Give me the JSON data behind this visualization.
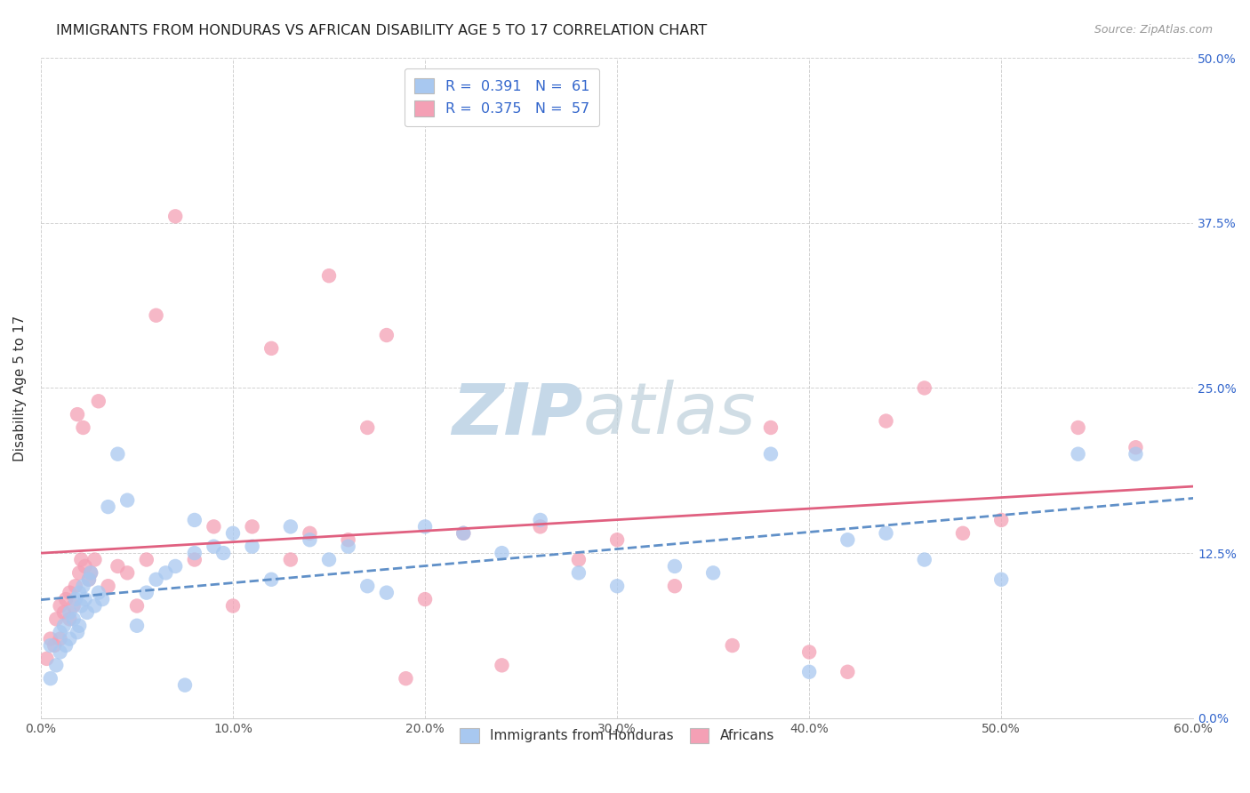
{
  "title": "IMMIGRANTS FROM HONDURAS VS AFRICAN DISABILITY AGE 5 TO 17 CORRELATION CHART",
  "source": "Source: ZipAtlas.com",
  "ylabel": "Disability Age 5 to 17",
  "ylabel_ticks": [
    "0.0%",
    "12.5%",
    "25.0%",
    "37.5%",
    "50.0%"
  ],
  "ylabel_vals": [
    0,
    12.5,
    25,
    37.5,
    50
  ],
  "xlabel_ticks": [
    "0.0%",
    "10.0%",
    "20.0%",
    "30.0%",
    "40.0%",
    "50.0%",
    "60.0%"
  ],
  "xlabel_vals": [
    0,
    10,
    20,
    30,
    40,
    50,
    60
  ],
  "xlim": [
    0,
    60
  ],
  "ylim": [
    0,
    50
  ],
  "r_honduras": 0.391,
  "n_honduras": 61,
  "r_africans": 0.375,
  "n_africans": 57,
  "color_honduras": "#a8c8f0",
  "color_africans": "#f4a0b5",
  "color_text_blue": "#3366cc",
  "watermark_color": "#c8d8e8",
  "honduras_x": [
    0.5,
    0.5,
    0.8,
    1.0,
    1.0,
    1.2,
    1.3,
    1.5,
    1.5,
    1.7,
    1.8,
    1.9,
    2.0,
    2.0,
    2.1,
    2.2,
    2.3,
    2.4,
    2.5,
    2.6,
    2.8,
    3.0,
    3.2,
    3.5,
    4.0,
    4.5,
    5.0,
    5.5,
    6.0,
    6.5,
    7.0,
    7.5,
    8.0,
    8.0,
    9.0,
    9.5,
    10.0,
    11.0,
    12.0,
    13.0,
    14.0,
    15.0,
    16.0,
    17.0,
    18.0,
    20.0,
    22.0,
    24.0,
    26.0,
    28.0,
    30.0,
    33.0,
    35.0,
    38.0,
    40.0,
    42.0,
    44.0,
    46.0,
    50.0,
    54.0,
    57.0
  ],
  "honduras_y": [
    3.0,
    5.5,
    4.0,
    5.0,
    6.5,
    7.0,
    5.5,
    6.0,
    8.0,
    7.5,
    9.0,
    6.5,
    7.0,
    9.5,
    8.5,
    10.0,
    9.0,
    8.0,
    10.5,
    11.0,
    8.5,
    9.5,
    9.0,
    16.0,
    20.0,
    16.5,
    7.0,
    9.5,
    10.5,
    11.0,
    11.5,
    2.5,
    12.5,
    15.0,
    13.0,
    12.5,
    14.0,
    13.0,
    10.5,
    14.5,
    13.5,
    12.0,
    13.0,
    10.0,
    9.5,
    14.5,
    14.0,
    12.5,
    15.0,
    11.0,
    10.0,
    11.5,
    11.0,
    20.0,
    3.5,
    13.5,
    14.0,
    12.0,
    10.5,
    20.0,
    20.0
  ],
  "africans_x": [
    0.3,
    0.5,
    0.7,
    0.8,
    1.0,
    1.0,
    1.2,
    1.3,
    1.5,
    1.5,
    1.7,
    1.8,
    1.9,
    2.0,
    2.1,
    2.2,
    2.3,
    2.5,
    2.6,
    2.8,
    3.0,
    3.5,
    4.0,
    4.5,
    5.0,
    5.5,
    6.0,
    7.0,
    8.0,
    9.0,
    10.0,
    11.0,
    12.0,
    13.0,
    14.0,
    15.0,
    16.0,
    17.0,
    18.0,
    19.0,
    20.0,
    22.0,
    24.0,
    26.0,
    28.0,
    30.0,
    33.0,
    36.0,
    38.0,
    40.0,
    42.0,
    44.0,
    46.0,
    48.0,
    50.0,
    54.0,
    57.0
  ],
  "africans_y": [
    4.5,
    6.0,
    5.5,
    7.5,
    6.0,
    8.5,
    8.0,
    9.0,
    7.5,
    9.5,
    8.5,
    10.0,
    23.0,
    11.0,
    12.0,
    22.0,
    11.5,
    10.5,
    11.0,
    12.0,
    24.0,
    10.0,
    11.5,
    11.0,
    8.5,
    12.0,
    30.5,
    38.0,
    12.0,
    14.5,
    8.5,
    14.5,
    28.0,
    12.0,
    14.0,
    33.5,
    13.5,
    22.0,
    29.0,
    3.0,
    9.0,
    14.0,
    4.0,
    14.5,
    12.0,
    13.5,
    10.0,
    5.5,
    22.0,
    5.0,
    3.5,
    22.5,
    25.0,
    14.0,
    15.0,
    22.0,
    20.5
  ]
}
